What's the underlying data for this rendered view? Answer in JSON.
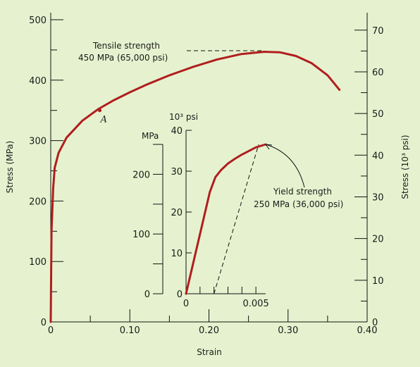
{
  "chart_data": [
    {
      "type": "line",
      "title": "",
      "xlabel": "Strain",
      "ylabel_left": "Stress (MPa)",
      "ylabel_right": "Stress (10³ psi)",
      "xlim": [
        0,
        0.4
      ],
      "ylim_left": [
        0,
        500
      ],
      "ylim_right": [
        0,
        72.5
      ],
      "x_ticks": [
        0,
        0.1,
        0.2,
        0.3,
        0.4
      ],
      "x_tick_labels": [
        "0",
        "0.10",
        "0.20",
        "0.30",
        "0.40"
      ],
      "y_left_ticks": [
        0,
        100,
        200,
        300,
        400,
        500
      ],
      "y_right_ticks": [
        0,
        10,
        20,
        30,
        40,
        50,
        60,
        70
      ],
      "series": [
        {
          "color": "#b01e1e",
          "x": [
            0,
            0.001,
            0.003,
            0.005,
            0.01,
            0.02,
            0.04,
            0.06,
            0.08,
            0.1,
            0.12,
            0.15,
            0.18,
            0.21,
            0.24,
            0.27,
            0.29,
            0.31,
            0.33,
            0.35,
            0.365
          ],
          "y": [
            0,
            150,
            220,
            255,
            280,
            305,
            333,
            352,
            367,
            380,
            392,
            408,
            422,
            434,
            443,
            447,
            446,
            440,
            428,
            408,
            384
          ]
        }
      ],
      "annotations": {
        "point_label": "A",
        "point": [
          0.062,
          350
        ],
        "tensile_line1": "Tensile strength",
        "tensile_line2": "450 MPa (65,000 psi)"
      }
    },
    {
      "type": "line",
      "title": "",
      "xlabel": "",
      "ylabel_left": "MPa",
      "ylabel_right": "10³ psi",
      "xlim": [
        0,
        0.0057
      ],
      "ylim_left": [
        0,
        250
      ],
      "ylim_right": [
        0,
        40
      ],
      "x_tick_labels": [
        "0",
        "0.005"
      ],
      "y_left_ticks": [
        0,
        100,
        200
      ],
      "y_right_ticks": [
        0,
        10,
        20,
        30,
        40
      ],
      "series": [
        {
          "color": "#b01e1e",
          "x": [
            0,
            0.0017,
            0.0021,
            0.0025,
            0.003,
            0.0035,
            0.004,
            0.0045,
            0.005,
            0.0057
          ],
          "y": [
            0,
            170,
            195,
            207,
            218,
            226,
            233,
            239,
            245,
            250
          ]
        }
      ],
      "offset_line": {
        "x": [
          0.002,
          0.0052
        ],
        "y": [
          0,
          250
        ]
      },
      "annotations": {
        "yield_line1": "Yield strength",
        "yield_line2": "250 MPa (36,000 psi)"
      }
    }
  ]
}
